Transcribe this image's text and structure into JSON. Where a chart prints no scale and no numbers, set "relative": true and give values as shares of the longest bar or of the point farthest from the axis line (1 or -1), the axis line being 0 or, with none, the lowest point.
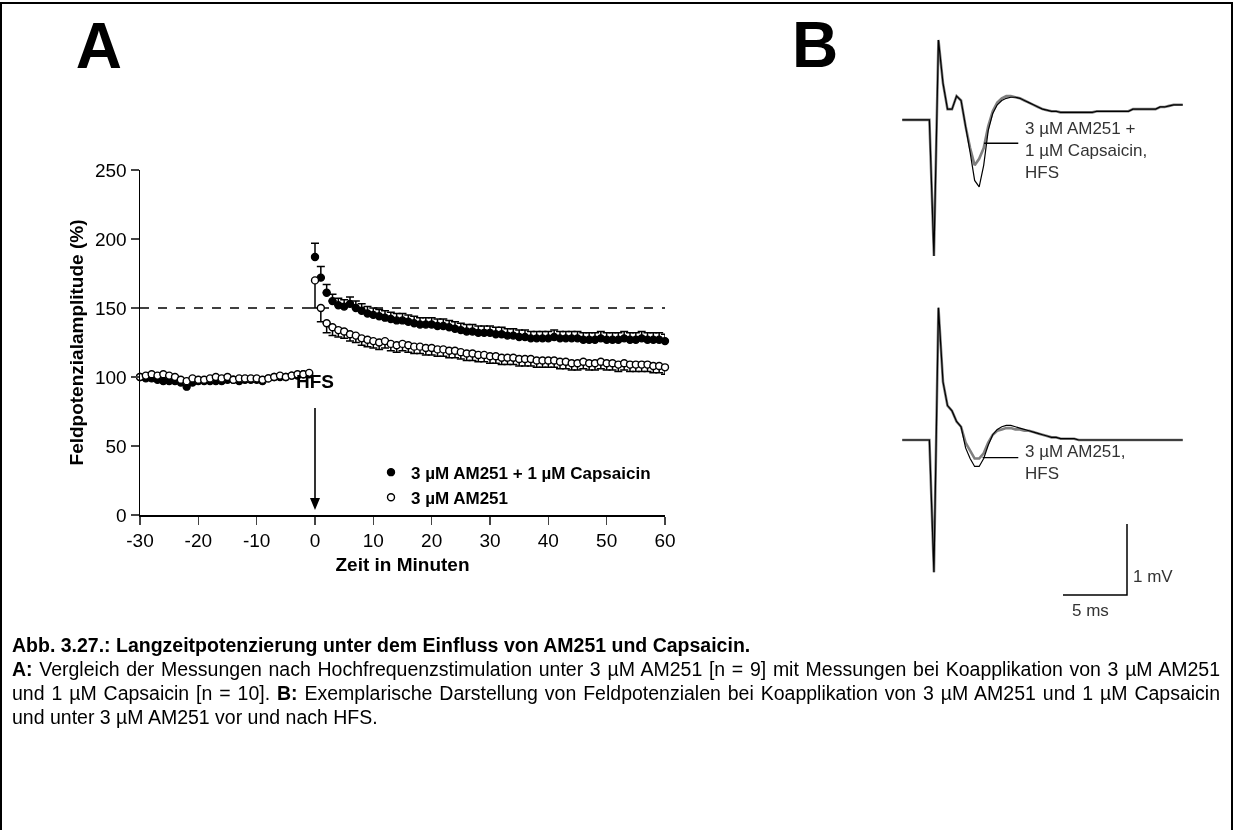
{
  "chart_data": [
    {
      "type": "scatter",
      "title": "A",
      "xlabel": "Zeit in Minuten",
      "ylabel": "Feldpotenzialamplitude (%)",
      "x": [
        -30,
        -29,
        -28,
        -27,
        -26,
        -25,
        -24,
        -23,
        -22,
        -21,
        -20,
        -19,
        -18,
        -17,
        -16,
        -15,
        -14,
        -13,
        -12,
        -11,
        -10,
        -9,
        -8,
        -7,
        -6,
        -5,
        -4,
        -3,
        -2,
        -1,
        0,
        1,
        2,
        3,
        4,
        5,
        6,
        7,
        8,
        9,
        10,
        11,
        12,
        13,
        14,
        15,
        16,
        17,
        18,
        19,
        20,
        21,
        22,
        23,
        24,
        25,
        26,
        27,
        28,
        29,
        30,
        31,
        32,
        33,
        34,
        35,
        36,
        37,
        38,
        39,
        40,
        41,
        42,
        43,
        44,
        45,
        46,
        47,
        48,
        49,
        50,
        51,
        52,
        53,
        54,
        55,
        56,
        57,
        58,
        59,
        60
      ],
      "xlim": [
        -30,
        60
      ],
      "xticks": [
        -30,
        -20,
        -10,
        0,
        10,
        20,
        30,
        40,
        50,
        60
      ],
      "ylim": [
        0,
        250
      ],
      "yticks": [
        0,
        50,
        100,
        150,
        200,
        250
      ],
      "marker": "circle",
      "legend": "bottom right",
      "series": [
        {
          "name": "3 µM AM251 + 1 µM Capsaicin",
          "color": "#000000",
          "values": [
            100,
            99,
            99,
            98,
            97,
            97,
            97,
            96,
            93,
            96,
            97,
            97,
            97,
            97,
            97,
            98,
            98,
            97,
            98,
            98,
            98,
            97,
            99,
            100,
            100,
            100,
            101,
            101,
            102,
            102,
            187,
            172,
            161,
            155,
            152,
            151,
            153,
            150,
            148,
            146,
            145,
            144,
            143,
            142,
            141,
            141,
            140,
            139,
            138,
            138,
            138,
            137,
            137,
            136,
            135,
            134,
            133,
            133,
            132,
            132,
            132,
            131,
            131,
            130,
            130,
            129,
            129,
            128,
            128,
            128,
            128,
            129,
            128,
            128,
            128,
            128,
            127,
            127,
            127,
            128,
            127,
            127,
            127,
            128,
            127,
            127,
            128,
            127,
            127,
            127,
            126
          ],
          "errors": [
            null,
            null,
            null,
            null,
            null,
            null,
            null,
            null,
            null,
            null,
            null,
            null,
            null,
            null,
            null,
            null,
            null,
            null,
            null,
            null,
            null,
            null,
            null,
            null,
            null,
            null,
            null,
            null,
            null,
            null,
            [
              187,
              197
            ],
            [
              172,
              180
            ],
            [
              161,
              167
            ],
            [
              155,
              160
            ],
            [
              152,
              157
            ],
            [
              151,
              156
            ],
            [
              153,
              158
            ],
            [
              150,
              155
            ],
            [
              148,
              153
            ],
            [
              146,
              151
            ],
            [
              145,
              150
            ],
            [
              144,
              149
            ],
            [
              143,
              148
            ],
            [
              142,
              147
            ],
            [
              141,
              146
            ],
            [
              141,
              146
            ],
            [
              140,
              145
            ],
            [
              139,
              144
            ],
            [
              138,
              143
            ],
            [
              138,
              143
            ],
            [
              138,
              143
            ],
            [
              137,
              142
            ],
            [
              137,
              142
            ],
            [
              136,
              141
            ],
            [
              135,
              140
            ],
            [
              134,
              139
            ],
            [
              133,
              138
            ],
            [
              133,
              138
            ],
            [
              132,
              137
            ],
            [
              132,
              137
            ],
            [
              132,
              137
            ],
            [
              131,
              136
            ],
            [
              131,
              136
            ],
            [
              130,
              135
            ],
            [
              130,
              135
            ],
            [
              129,
              134
            ],
            [
              129,
              134
            ],
            [
              128,
              133
            ],
            [
              128,
              133
            ],
            [
              128,
              133
            ],
            [
              128,
              133
            ],
            [
              129,
              134
            ],
            [
              128,
              133
            ],
            [
              128,
              133
            ],
            [
              128,
              133
            ],
            [
              128,
              133
            ],
            [
              127,
              132
            ],
            [
              127,
              132
            ],
            [
              127,
              132
            ],
            [
              128,
              133
            ],
            [
              127,
              132
            ],
            [
              127,
              132
            ],
            [
              127,
              132
            ],
            [
              128,
              133
            ],
            [
              127,
              132
            ],
            [
              127,
              132
            ],
            [
              128,
              133
            ],
            [
              127,
              132
            ],
            [
              127,
              132
            ],
            [
              127,
              132
            ],
            [
              126,
              131
            ]
          ]
        },
        {
          "name": "3 µM AM251",
          "color": "#ffffff",
          "values": [
            100,
            101,
            102,
            101,
            102,
            101,
            100,
            98,
            97,
            99,
            98,
            98,
            99,
            100,
            99,
            100,
            98,
            99,
            99,
            99,
            99,
            98,
            99,
            100,
            101,
            100,
            101,
            102,
            102,
            103,
            170,
            150,
            139,
            136,
            134,
            133,
            131,
            130,
            128,
            127,
            126,
            125,
            126,
            124,
            123,
            124,
            123,
            122,
            122,
            121,
            121,
            120,
            120,
            119,
            119,
            118,
            117,
            117,
            116,
            116,
            115,
            115,
            114,
            114,
            114,
            113,
            113,
            113,
            112,
            112,
            112,
            112,
            111,
            111,
            110,
            110,
            111,
            110,
            110,
            111,
            110,
            110,
            109,
            110,
            109,
            109,
            109,
            109,
            108,
            108,
            107
          ],
          "errors": [
            null,
            null,
            null,
            null,
            null,
            null,
            null,
            null,
            null,
            null,
            null,
            null,
            null,
            null,
            null,
            null,
            null,
            null,
            null,
            null,
            null,
            null,
            null,
            null,
            null,
            null,
            null,
            null,
            null,
            null,
            [
              150,
              170
            ],
            [
              140,
              150
            ],
            [
              132,
              139
            ],
            [
              130,
              136
            ],
            [
              129,
              134
            ],
            [
              128,
              133
            ],
            [
              126,
              131
            ],
            [
              125,
              130
            ],
            [
              123,
              128
            ],
            [
              122,
              127
            ],
            [
              121,
              126
            ],
            [
              120,
              125
            ],
            [
              121,
              126
            ],
            [
              119,
              124
            ],
            [
              118,
              123
            ],
            [
              119,
              124
            ],
            [
              118,
              123
            ],
            [
              117,
              122
            ],
            [
              117,
              122
            ],
            [
              116,
              121
            ],
            [
              116,
              121
            ],
            [
              115,
              120
            ],
            [
              115,
              120
            ],
            [
              114,
              119
            ],
            [
              114,
              119
            ],
            [
              113,
              118
            ],
            [
              112,
              117
            ],
            [
              112,
              117
            ],
            [
              111,
              116
            ],
            [
              111,
              116
            ],
            [
              110,
              115
            ],
            [
              110,
              115
            ],
            [
              109,
              114
            ],
            [
              109,
              114
            ],
            [
              109,
              114
            ],
            [
              108,
              113
            ],
            [
              108,
              113
            ],
            [
              108,
              113
            ],
            [
              107,
              112
            ],
            [
              107,
              112
            ],
            [
              107,
              112
            ],
            [
              107,
              112
            ],
            [
              106,
              111
            ],
            [
              106,
              111
            ],
            [
              105,
              110
            ],
            [
              105,
              110
            ],
            [
              106,
              111
            ],
            [
              105,
              110
            ],
            [
              105,
              110
            ],
            [
              106,
              111
            ],
            [
              105,
              110
            ],
            [
              105,
              110
            ],
            [
              104,
              109
            ],
            [
              105,
              110
            ],
            [
              104,
              109
            ],
            [
              104,
              109
            ],
            [
              104,
              109
            ],
            [
              104,
              109
            ],
            [
              103,
              108
            ],
            [
              103,
              108
            ],
            [
              102,
              107
            ]
          ]
        }
      ],
      "ref_lines": [
        {
          "axis": "y",
          "value": 150,
          "line_style": "dashed",
          "color": "#000000"
        }
      ],
      "annotations": [
        "HFS",
        "Abb. 3.27.: Langzeitpotenzierung unter dem Einfluss von AM251 und Capsaicin.",
        "A: Vergleich der Messungen nach Hochfrequenzstimulation unter 3 µM AM251 [n = 9] mit Messungen bei Koapplikation von 3 µM AM251 und 1 µM Capsaicin [n = 10].",
        "B: Exemplarische Darstellung von Feldpotenzialen bei Koapplikation von 3 µM AM251 und 1 µM Capsaicin und unter 3 µM AM251 vor und nach HFS."
      ]
    },
    {
      "type": "line",
      "title": "B",
      "relative": true,
      "categories": [
        null,
        null,
        null,
        null,
        null,
        null,
        null,
        null,
        null,
        null,
        null,
        null,
        null,
        null,
        null,
        null,
        null,
        null,
        null,
        null,
        null,
        null,
        null,
        null,
        null,
        null,
        null,
        null,
        null,
        null,
        null,
        null,
        null,
        null,
        null,
        null,
        null,
        null,
        null,
        null,
        null,
        null,
        null,
        null,
        null,
        null,
        null,
        null,
        null,
        null,
        null,
        null,
        null,
        null,
        null,
        null,
        null,
        null,
        null,
        null,
        null,
        null,
        null
      ],
      "series": [
        {
          "color": "#000000",
          "values": [
            0.63,
            0.63,
            0.63,
            0.63,
            0.63,
            0.63,
            0.63,
            0,
            1,
            0.8,
            0.68,
            0.68,
            0.74,
            0.72,
            0.6,
            0.48,
            0.35,
            0.32,
            0.42,
            0.58,
            0.66,
            0.7,
            0.72,
            0.73,
            0.735,
            0.735,
            0.73,
            0.72,
            0.71,
            0.7,
            0.69,
            0.68,
            0.675,
            0.67,
            0.67,
            0.665,
            0.665,
            0.665,
            0.665,
            0.665,
            0.665,
            0.665,
            0.665,
            0.67,
            0.67,
            0.67,
            0.67,
            0.67,
            0.67,
            0.67,
            0.67,
            0.68,
            0.68,
            0.68,
            0.68,
            0.68,
            0.68,
            0.69,
            0.69,
            0.695,
            0.7,
            0.7,
            0.7
          ]
        },
        {
          "color": "#7f7f7f",
          "values": [
            0.63,
            0.63,
            0.63,
            0.63,
            0.63,
            0.63,
            0.63,
            0,
            1,
            0.8,
            0.68,
            0.68,
            0.74,
            0.72,
            0.6,
            0.5,
            0.42,
            0.45,
            0.5,
            0.6,
            0.67,
            0.71,
            0.73,
            0.74,
            0.74,
            0.735,
            0.73,
            0.72,
            0.71,
            0.7,
            0.69,
            0.68,
            0.675,
            0.67,
            0.67,
            0.665,
            0.665,
            0.665,
            0.665,
            0.665,
            0.665,
            0.665,
            0.665,
            0.67,
            0.67,
            0.67,
            0.67,
            0.67,
            0.67,
            0.67,
            0.67,
            0.68,
            0.68,
            0.68,
            0.68,
            0.68,
            0.68,
            0.69,
            0.69,
            0.695,
            0.7,
            0.7,
            0.7
          ]
        }
      ],
      "annotations": [
        "3 µM AM251 +\n1 µM Capsaicin,\nHFS"
      ]
    },
    {
      "type": "line",
      "relative": true,
      "categories": [
        null,
        null,
        null,
        null,
        null,
        null,
        null,
        null,
        null,
        null,
        null,
        null,
        null,
        null,
        null,
        null,
        null,
        null,
        null,
        null,
        null,
        null,
        null,
        null,
        null,
        null,
        null,
        null,
        null,
        null,
        null,
        null,
        null,
        null,
        null,
        null,
        null,
        null,
        null,
        null,
        null,
        null,
        null,
        null,
        null,
        null,
        null,
        null,
        null,
        null,
        null,
        null,
        null,
        null,
        null,
        null,
        null,
        null,
        null,
        null,
        null,
        null,
        null
      ],
      "series": [
        {
          "color": "#000000",
          "values": [
            0.5,
            0.5,
            0.5,
            0.5,
            0.5,
            0.5,
            0.5,
            0,
            1,
            0.72,
            0.63,
            0.61,
            0.57,
            0.55,
            0.47,
            0.43,
            0.4,
            0.4,
            0.43,
            0.48,
            0.52,
            0.54,
            0.55,
            0.555,
            0.555,
            0.55,
            0.545,
            0.54,
            0.535,
            0.53,
            0.525,
            0.52,
            0.515,
            0.51,
            0.51,
            0.505,
            0.505,
            0.505,
            0.505,
            0.5,
            0.5,
            0.5,
            0.5,
            0.5,
            0.5,
            0.5,
            0.5,
            0.5,
            0.5,
            0.5,
            0.5,
            0.5,
            0.5,
            0.5,
            0.5,
            0.5,
            0.5,
            0.5,
            0.5,
            0.5,
            0.5,
            0.5,
            0.5
          ]
        },
        {
          "color": "#7f7f7f",
          "values": [
            0.5,
            0.5,
            0.5,
            0.5,
            0.5,
            0.5,
            0.5,
            0,
            1,
            0.72,
            0.63,
            0.61,
            0.57,
            0.55,
            0.49,
            0.46,
            0.43,
            0.43,
            0.45,
            0.49,
            0.52,
            0.535,
            0.54,
            0.545,
            0.545,
            0.54,
            0.54,
            0.535,
            0.535,
            0.53,
            0.525,
            0.52,
            0.515,
            0.51,
            0.51,
            0.505,
            0.505,
            0.505,
            0.505,
            0.5,
            0.5,
            0.5,
            0.5,
            0.5,
            0.5,
            0.5,
            0.5,
            0.5,
            0.5,
            0.5,
            0.5,
            0.5,
            0.5,
            0.5,
            0.5,
            0.5,
            0.5,
            0.5,
            0.5,
            0.5,
            0.5,
            0.5,
            0.5
          ]
        }
      ],
      "annotations": [
        "3 µM AM251,\nHFS",
        "1 mV",
        "5 ms"
      ]
    }
  ]
}
